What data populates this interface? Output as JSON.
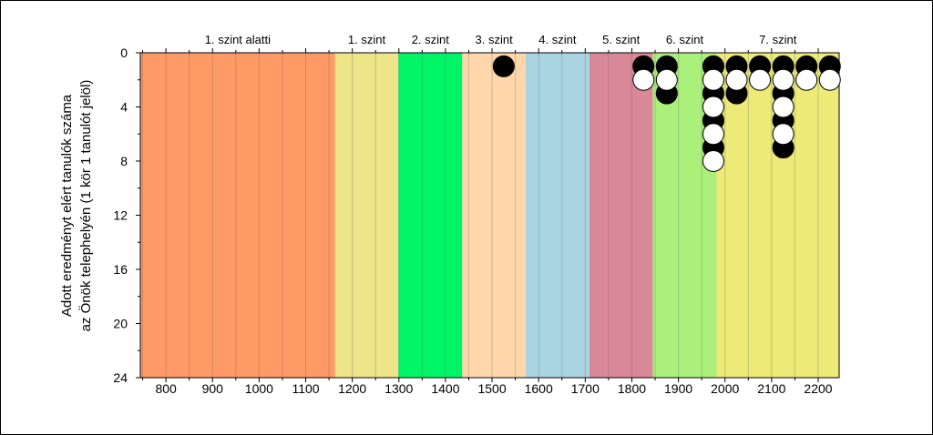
{
  "chart_data": {
    "type": "scatter",
    "ylabel_line1": "Adott eredményt elért tanulók száma",
    "ylabel_line2": "az Önök telephelyén (1 kör 1 tanulót jelöl)",
    "xlim": [
      745,
      2245
    ],
    "ylim": [
      0,
      24
    ],
    "y_inverted": true,
    "x_ticks": [
      800,
      900,
      1000,
      1100,
      1200,
      1300,
      1400,
      1500,
      1600,
      1700,
      1800,
      1900,
      2000,
      2100,
      2200
    ],
    "y_ticks": [
      0,
      4,
      8,
      12,
      16,
      20,
      24
    ],
    "levels": [
      {
        "label": "1. szint alatti",
        "from": 745,
        "to": 1163,
        "color": "#ff9966"
      },
      {
        "label": "1. szint",
        "from": 1163,
        "to": 1299,
        "color": "#eee488"
      },
      {
        "label": "2. szint",
        "from": 1299,
        "to": 1436,
        "color": "#00f566"
      },
      {
        "label": "3. szint",
        "from": 1436,
        "to": 1572,
        "color": "#ffd7aa"
      },
      {
        "label": "4. szint",
        "from": 1572,
        "to": 1709,
        "color": "#aad4e2"
      },
      {
        "label": "5. szint",
        "from": 1709,
        "to": 1845,
        "color": "#d98898"
      },
      {
        "label": "6. szint",
        "from": 1845,
        "to": 1982,
        "color": "#aaf07a"
      },
      {
        "label": "7. szint",
        "from": 1982,
        "to": 2245,
        "color": "#eeea77"
      }
    ],
    "series": [
      {
        "color": "#000000",
        "points": [
          {
            "x": 1525,
            "y": 1
          },
          {
            "x": 1825,
            "y": 1
          },
          {
            "x": 1875,
            "y": 1
          },
          {
            "x": 1875,
            "y": 3
          },
          {
            "x": 1975,
            "y": 1
          },
          {
            "x": 1975,
            "y": 3
          },
          {
            "x": 1975,
            "y": 5
          },
          {
            "x": 1975,
            "y": 7
          },
          {
            "x": 2025,
            "y": 1
          },
          {
            "x": 2025,
            "y": 3
          },
          {
            "x": 2075,
            "y": 1
          },
          {
            "x": 2125,
            "y": 1
          },
          {
            "x": 2125,
            "y": 3
          },
          {
            "x": 2125,
            "y": 5
          },
          {
            "x": 2125,
            "y": 7
          },
          {
            "x": 2175,
            "y": 1
          },
          {
            "x": 2225,
            "y": 1
          }
        ]
      },
      {
        "color": "#ffffff",
        "points": [
          {
            "x": 1825,
            "y": 2
          },
          {
            "x": 1875,
            "y": 2
          },
          {
            "x": 1975,
            "y": 2
          },
          {
            "x": 1975,
            "y": 4
          },
          {
            "x": 1975,
            "y": 6
          },
          {
            "x": 1975,
            "y": 8
          },
          {
            "x": 2025,
            "y": 2
          },
          {
            "x": 2075,
            "y": 2
          },
          {
            "x": 2125,
            "y": 2
          },
          {
            "x": 2125,
            "y": 4
          },
          {
            "x": 2125,
            "y": 6
          },
          {
            "x": 2175,
            "y": 2
          },
          {
            "x": 2225,
            "y": 2
          }
        ]
      }
    ]
  }
}
